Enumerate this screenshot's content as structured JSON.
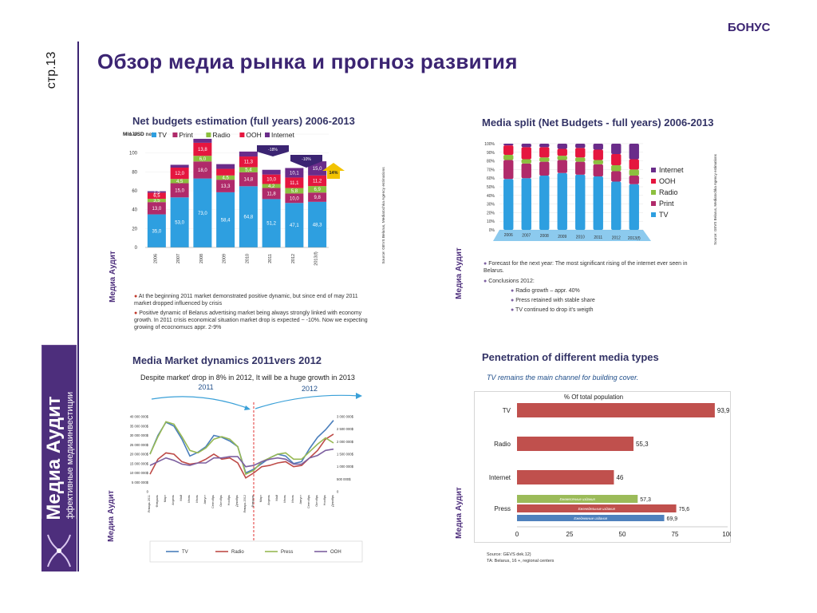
{
  "header": {
    "bonus": "БОНУС",
    "page": "стр.13",
    "title": "Обзор медиа рынка и прогноз развития"
  },
  "logo": {
    "name": "Медиа Аудит",
    "tagline": "эффективные медиаинвестиции"
  },
  "panel1": {
    "title": "Net budgets estimation (full years) 2006-2013",
    "unit": "Mln USD net",
    "source": "Source: GEVS Belarus, Mediatochka Agency estimations",
    "bubbles": [
      "-18%",
      "-10%",
      "14%"
    ],
    "notes": [
      "At the beginning 2011 market demonstrated positive dynamic, but since end of may 2011 market dropped influenced by crisis",
      "Positive dynamic of Belarus advertising market being always strongly linked with economy growth. In 2011 crisis economical situation market drop is expected ~ -10%. Now we expecting growing of ecocnomucs appr. 2-9%"
    ],
    "chart_data": {
      "type": "bar",
      "title": "Net budgets estimation (full years) 2006-2013",
      "ylabel": "Mln USD net",
      "categories": [
        "2006",
        "2007",
        "2008",
        "2009",
        "2010",
        "2011",
        "2012",
        "2013(f)"
      ],
      "ylim": [
        0,
        120
      ],
      "yticks": [
        0,
        20,
        40,
        60,
        80,
        100,
        120
      ],
      "series": [
        {
          "name": "TV",
          "color": "#2e9fe0",
          "values": [
            35.0,
            53.0,
            73.0,
            58.4,
            64.8,
            51.2,
            47.1,
            48.3
          ],
          "labels": [
            "35,0",
            "53,0",
            "73,0",
            "58,4",
            "64,8",
            "51,2",
            "47,1",
            "48,3"
          ]
        },
        {
          "name": "Print",
          "color": "#b02a6a",
          "values": [
            13.0,
            15.0,
            18.0,
            13.3,
            14.8,
            11.8,
            10.0,
            9.8
          ],
          "labels": [
            "13,0",
            "15,0",
            "18,0",
            "13,3",
            "14,8",
            "11,8",
            "10,0",
            "9,8"
          ]
        },
        {
          "name": "Radio",
          "color": "#8cbf3f",
          "values": [
            3.5,
            4.5,
            6.0,
            4.5,
            5.4,
            4.2,
            5.8,
            6.9
          ],
          "labels": [
            "3,5",
            "4,5",
            "6,0",
            "4,5",
            "5,4",
            "4,2",
            "5,8",
            "6,9"
          ]
        },
        {
          "name": "OOH",
          "color": "#e5163f",
          "values": [
            6.5,
            12.0,
            13.8,
            7.0,
            11.3,
            10.0,
            11.1,
            11.2
          ],
          "labels": [
            "6,5",
            "12,0",
            "13,8",
            "",
            "11,3",
            "10,0",
            "11,1",
            "11,2"
          ]
        },
        {
          "name": "Internet",
          "color": "#6a2c8a",
          "values": [
            1.5,
            3.0,
            4.2,
            5.0,
            5.2,
            5.0,
            10.1,
            15.0
          ],
          "labels": [
            "1,5",
            "",
            "",
            "",
            "",
            "",
            "10,1",
            "15,0"
          ]
        }
      ]
    }
  },
  "panel2": {
    "title": "Media split (Net Budgets - full years) 2006-2013",
    "source": "Source: GEVS Belarus, Mediatochka Agency estimations",
    "notes": [
      "Forecast for the next year: The most significant rising of the internet ever seen in Belarus.",
      "Conclusions 2012:"
    ],
    "subnotes": [
      "Radio growth – appr. 40%",
      "Press retained with stable share",
      "TV continued to drop it's weigth"
    ],
    "chart_data": {
      "type": "bar",
      "title": "Media split (Net Budgets - full years) 2006-2013",
      "categories": [
        "2006",
        "2007",
        "2008",
        "2009",
        "2010",
        "2011",
        "2012",
        "2013(f)"
      ],
      "ylim": [
        0,
        100
      ],
      "yticks": [
        "0%",
        "10%",
        "20%",
        "30%",
        "40%",
        "50%",
        "60%",
        "70%",
        "80%",
        "90%",
        "100%"
      ],
      "series": [
        {
          "name": "TV",
          "color": "#2e9fe0",
          "values": [
            59,
            60,
            63,
            66,
            64,
            62,
            56,
            53
          ]
        },
        {
          "name": "Print",
          "color": "#b02a6a",
          "values": [
            22,
            17,
            16,
            15,
            15,
            14,
            12,
            10
          ]
        },
        {
          "name": "Radio",
          "color": "#8cbf3f",
          "values": [
            6,
            5,
            5,
            5,
            5,
            5,
            7,
            7
          ]
        },
        {
          "name": "OOH",
          "color": "#e5163f",
          "values": [
            11,
            14,
            12,
            8,
            11,
            12,
            13,
            12
          ]
        },
        {
          "name": "Internet",
          "color": "#6a2c8a",
          "values": [
            2,
            4,
            4,
            6,
            5,
            7,
            12,
            18
          ]
        }
      ]
    }
  },
  "panel3": {
    "title": "Media Market dynamics 2011vers 2012",
    "subtitle": "Despite market' drop in 8% in 2012, It will be a huge growth in 2013",
    "arrow_left": "2011",
    "arrow_right": "2012",
    "left_axis": [
      "0",
      "5 000 000$",
      "10 000 000$",
      "15 000 000$",
      "20 000 000$",
      "25 000 000$",
      "30 000 000$",
      "35 000 000$",
      "40 000 000$"
    ],
    "right_axis": [
      "0",
      "500 000$",
      "1 000 000$",
      "1 500 000$",
      "2 000 000$",
      "2 500 000$",
      "3 000 000$"
    ],
    "chart_data": {
      "type": "line",
      "title": "Media Market dynamics 2011vers 2012",
      "categories": [
        "Январь 2011",
        "Февраль",
        "Март",
        "Апрель",
        "Май",
        "Июнь",
        "Июль",
        "Август",
        "Сентябрь",
        "Октябрь",
        "Ноябрь",
        "Декабрь",
        "Январь 2012",
        "Февраль",
        "Март",
        "Апрель",
        "Май",
        "Июнь",
        "Июль",
        "Август",
        "Сентябрь",
        "Октябрь",
        "Ноябрь",
        "Декабрь"
      ],
      "ylim": [
        0,
        40000000
      ],
      "y2lim": [
        0,
        3000000
      ],
      "series": [
        {
          "name": "TV",
          "color": "#4a7ebb",
          "axis": "left",
          "values": [
            20000000,
            30000000,
            37000000,
            35000000,
            28000000,
            19000000,
            21000000,
            24000000,
            30000000,
            29000000,
            27000000,
            24000000,
            10000000,
            12000000,
            15000000,
            18000000,
            20000000,
            19000000,
            15000000,
            16000000,
            23000000,
            29000000,
            33000000,
            38000000
          ]
        },
        {
          "name": "Radio",
          "color": "#be4b48",
          "axis": "right",
          "values": [
            700000,
            1300000,
            1550000,
            1500000,
            1200000,
            1100000,
            1150000,
            1300000,
            1500000,
            1300000,
            1350000,
            1150000,
            550000,
            750000,
            1000000,
            1050000,
            1150000,
            1200000,
            1000000,
            1050000,
            1350000,
            1650000,
            2100000,
            2300000
          ]
        },
        {
          "name": "Press",
          "color": "#98b954",
          "axis": "right",
          "values": [
            1500000,
            2200000,
            2800000,
            2700000,
            2200000,
            1650000,
            1550000,
            1750000,
            2100000,
            2200000,
            2100000,
            1800000,
            700000,
            850000,
            1200000,
            1350000,
            1500000,
            1550000,
            1300000,
            1300000,
            1600000,
            1900000,
            2150000,
            1950000
          ]
        },
        {
          "name": "OOH",
          "color": "#7d60a0",
          "axis": "right",
          "values": [
            1050000,
            1200000,
            1350000,
            1250000,
            1100000,
            1050000,
            1150000,
            1150000,
            1350000,
            1350000,
            1400000,
            1400000,
            1000000,
            1050000,
            1200000,
            1300000,
            1350000,
            1300000,
            1100000,
            1100000,
            1350000,
            1450000,
            1650000,
            1700000
          ]
        }
      ]
    }
  },
  "panel4": {
    "title": "Penetration of different media types",
    "subtitle": "TV remains the main channel for building cover.",
    "chart_title": "% Of total population",
    "source": "Source: GEVS dek.12)",
    "ta": "TA: Belarus, 16 +, regional centers",
    "press_labels": [
      "Ежемесячные издания",
      "Еженедельные издания",
      "Ежедневные издания"
    ],
    "chart_data": {
      "type": "bar",
      "orientation": "horizontal",
      "title": "% Of total population",
      "categories": [
        "TV",
        "Radio",
        "Internet",
        "Press"
      ],
      "xlim": [
        0,
        100
      ],
      "xticks": [
        0,
        25,
        50,
        75,
        100
      ],
      "series": [
        {
          "category": "TV",
          "value": 93.9,
          "label": "93,9",
          "color": "#c0504d"
        },
        {
          "category": "Radio",
          "value": 55.3,
          "label": "55,3",
          "color": "#c0504d"
        },
        {
          "category": "Internet",
          "value": 46,
          "label": "46",
          "color": "#c0504d"
        },
        {
          "category": "Press",
          "name": "Ежемесячные издания",
          "value": 57.3,
          "label": "57,3",
          "color": "#9bbb59"
        },
        {
          "category": "Press",
          "name": "Еженедельные издания",
          "value": 75.6,
          "label": "75,6",
          "color": "#c0504d"
        },
        {
          "category": "Press",
          "name": "Ежедневные издания",
          "value": 69.9,
          "label": "69,9",
          "color": "#4f81bd"
        }
      ]
    }
  }
}
